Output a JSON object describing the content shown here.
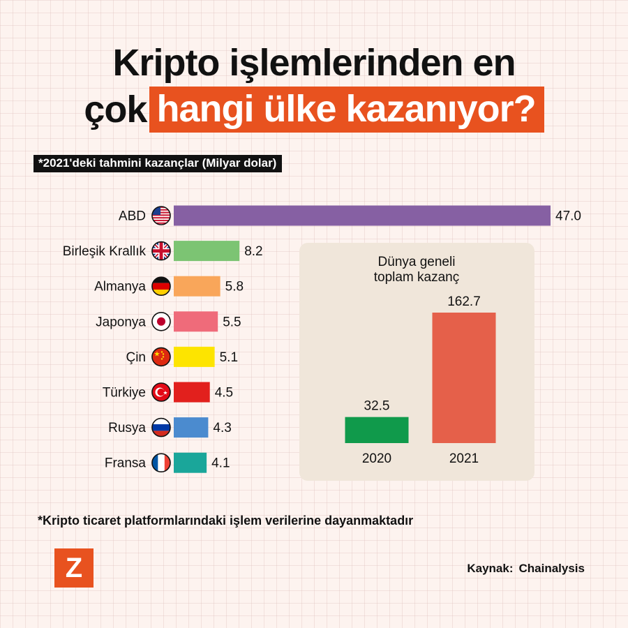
{
  "title": {
    "line1": "Kripto işlemlerinden en",
    "line2_plain": "çok",
    "line2_highlight": "hangi ülke kazanıyor?"
  },
  "subtitle": "*2021'deki tahmini kazançlar (Milyar dolar)",
  "footnote": "*Kripto ticaret platformlarındaki işlem verilerine dayanmaktadır",
  "source": {
    "label": "Kaynak:",
    "value": "Chainalysis"
  },
  "logo": "Z",
  "colors": {
    "accent": "#e8521f",
    "inset_bg": "#f0e6da"
  },
  "chart_data": [
    {
      "type": "bar",
      "orientation": "horizontal",
      "categories": [
        "ABD",
        "Birleşik Krallık",
        "Almanya",
        "Japonya",
        "Çin",
        "Türkiye",
        "Rusya",
        "Fransa"
      ],
      "flags": [
        "us-flag-icon",
        "uk-flag-icon",
        "germany-flag-icon",
        "japan-flag-icon",
        "china-flag-icon",
        "turkey-flag-icon",
        "russia-flag-icon",
        "france-flag-icon"
      ],
      "values": [
        47.0,
        8.2,
        5.8,
        5.5,
        5.1,
        4.5,
        4.3,
        4.1
      ],
      "value_labels": [
        "47.0",
        "8.2",
        "5.8",
        "5.5",
        "5.1",
        "4.5",
        "4.3",
        "4.1"
      ],
      "colors": [
        "#8660a3",
        "#7cc473",
        "#f9a65a",
        "#ef6b7a",
        "#fde400",
        "#e2201d",
        "#4b8bcf",
        "#1aa69a"
      ],
      "title": "*2021'deki tahmini kazançlar (Milyar dolar)",
      "grid": false,
      "legend": "none"
    },
    {
      "type": "bar",
      "title": "Dünya geneli toplam kazanç",
      "title_lines": [
        "Dünya geneli",
        "toplam kazanç"
      ],
      "categories": [
        "2020",
        "2021"
      ],
      "values": [
        32.5,
        162.7
      ],
      "value_labels": [
        "32.5",
        "162.7"
      ],
      "colors": [
        "#109a4b",
        "#e5604a"
      ],
      "grid": false,
      "legend": "none"
    }
  ]
}
